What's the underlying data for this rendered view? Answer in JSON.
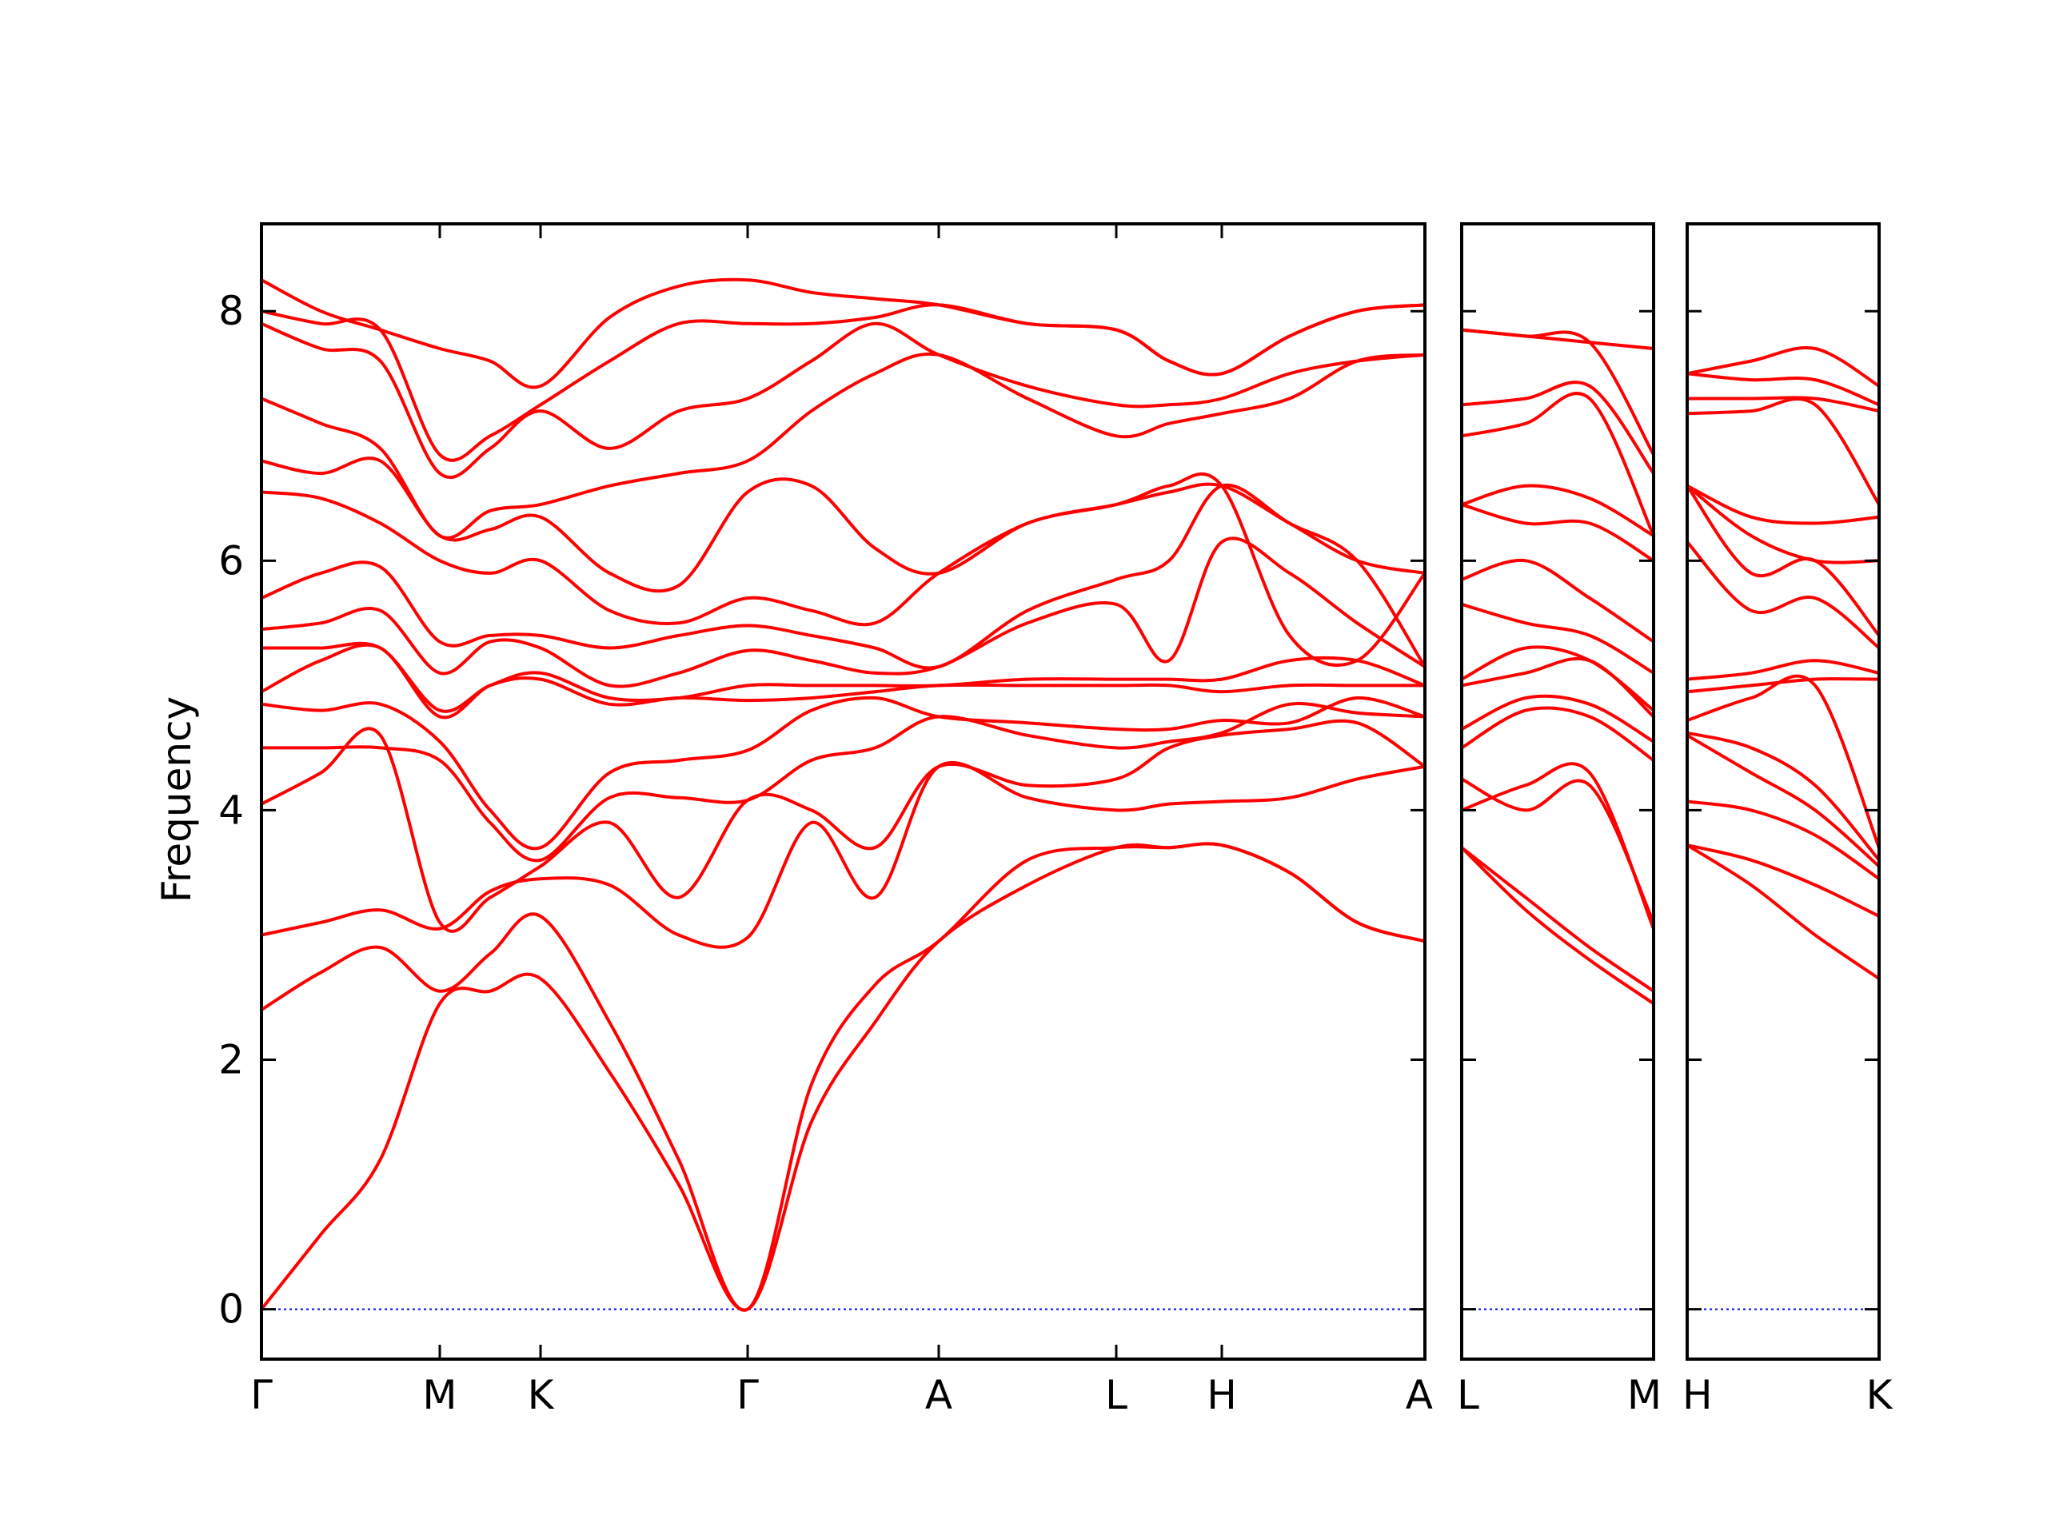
{
  "chart_data": {
    "type": "line",
    "ylabel": "Frequency",
    "ylim": [
      -0.4,
      8.7
    ],
    "yticks": [
      0,
      2,
      4,
      6,
      8
    ],
    "grid": false,
    "line_color": "#ff0000",
    "zero_line_color": "#0000ff",
    "panels": [
      {
        "labels": [
          "Γ",
          "M",
          "K",
          "Γ",
          "A",
          "L",
          "H",
          "A"
        ],
        "segments": [
          {
            "from": "Γ",
            "to": "M",
            "bands": [
              [
                0,
                2.4,
                3.0,
                4.05,
                4.5,
                4.85,
                4.95,
                5.3,
                5.45,
                5.7,
                6.55,
                6.8,
                7.3,
                7.9,
                8.0,
                8.25
              ],
              [
                0.6,
                2.7,
                3.1,
                4.3,
                4.5,
                4.8,
                5.2,
                5.3,
                5.5,
                5.9,
                6.5,
                6.7,
                7.1,
                7.7,
                7.9,
                8.0
              ],
              [
                1.2,
                2.9,
                3.2,
                4.6,
                4.5,
                4.85,
                5.3,
                5.3,
                5.6,
                5.95,
                6.3,
                6.8,
                6.9,
                7.6,
                7.85,
                7.85
              ],
              [
                2.45,
                2.55,
                3.05,
                3.1,
                4.4,
                4.55,
                4.75,
                4.8,
                5.1,
                5.35,
                6.0,
                6.2,
                6.2,
                6.7,
                6.85,
                7.7
              ]
            ]
          },
          {
            "from": "M",
            "to": "K",
            "bands": [
              [
                2.45,
                2.55,
                3.05,
                3.1,
                4.4,
                4.55,
                4.75,
                4.8,
                5.1,
                5.35,
                6.0,
                6.2,
                6.2,
                6.7,
                6.85,
                7.7
              ],
              [
                2.55,
                2.85,
                3.35,
                3.3,
                3.9,
                4.0,
                5.0,
                5.0,
                5.35,
                5.4,
                5.9,
                6.25,
                6.4,
                6.9,
                7.0,
                7.6
              ],
              [
                2.65,
                3.15,
                3.45,
                3.55,
                3.6,
                3.7,
                5.05,
                5.1,
                5.3,
                5.4,
                6.0,
                6.35,
                6.45,
                7.2,
                7.25,
                7.4
              ]
            ]
          },
          {
            "from": "K",
            "to": "Γ",
            "bands": [
              [
                2.65,
                3.15,
                3.45,
                3.55,
                3.6,
                3.7,
                5.05,
                5.1,
                5.3,
                5.4,
                6.0,
                6.35,
                6.45,
                7.2,
                7.25,
                7.4
              ],
              [
                1.9,
                2.3,
                3.4,
                3.9,
                4.1,
                4.3,
                4.85,
                4.9,
                5.0,
                5.3,
                5.6,
                5.9,
                6.6,
                6.9,
                7.6,
                7.95
              ],
              [
                1.0,
                1.2,
                3.0,
                3.3,
                4.1,
                4.4,
                4.9,
                4.9,
                5.1,
                5.4,
                5.5,
                5.8,
                6.7,
                7.2,
                7.9,
                8.2
              ],
              [
                0,
                0,
                2.98,
                4.08,
                4.08,
                4.48,
                4.88,
                5.0,
                5.28,
                5.48,
                5.7,
                6.55,
                6.8,
                7.3,
                7.9,
                8.25
              ]
            ]
          },
          {
            "from": "Γ",
            "to": "A",
            "bands": [
              [
                0,
                0,
                2.98,
                4.08,
                4.08,
                4.48,
                4.88,
                5.0,
                5.28,
                5.48,
                5.7,
                6.55,
                6.8,
                7.3,
                7.9,
                8.25
              ],
              [
                1.5,
                1.8,
                3.9,
                4.0,
                4.4,
                4.8,
                4.9,
                5.0,
                5.2,
                5.4,
                5.6,
                6.6,
                7.2,
                7.6,
                7.9,
                8.15
              ],
              [
                2.3,
                2.6,
                3.3,
                3.7,
                4.5,
                4.9,
                4.95,
                5.0,
                5.1,
                5.3,
                5.5,
                6.1,
                7.5,
                7.9,
                7.95,
                8.1
              ],
              [
                2.95,
                2.95,
                4.35,
                4.35,
                4.75,
                4.75,
                5.0,
                5.0,
                5.15,
                5.15,
                5.9,
                5.9,
                7.65,
                7.65,
                8.05,
                8.05
              ]
            ]
          },
          {
            "from": "A",
            "to": "L",
            "bands": [
              [
                2.95,
                2.95,
                4.35,
                4.35,
                4.75,
                4.75,
                5.0,
                5.0,
                5.15,
                5.15,
                5.9,
                5.9,
                7.65,
                7.65,
                8.05,
                8.05
              ],
              [
                3.4,
                3.6,
                4.1,
                4.2,
                4.6,
                4.7,
                5.0,
                5.05,
                5.5,
                5.6,
                6.3,
                6.3,
                7.3,
                7.4,
                7.9,
                7.9
              ],
              [
                3.7,
                3.7,
                4.0,
                4.25,
                4.5,
                4.65,
                5.0,
                5.05,
                5.65,
                5.85,
                6.45,
                6.45,
                7.0,
                7.25,
                7.85,
                7.85
              ]
            ]
          },
          {
            "from": "L",
            "to": "H",
            "bands": [
              [
                3.7,
                3.7,
                4.0,
                4.25,
                4.5,
                4.65,
                5.0,
                5.05,
                5.65,
                5.85,
                6.45,
                6.45,
                7.0,
                7.25,
                7.85,
                7.85
              ],
              [
                3.7,
                3.7,
                4.05,
                4.5,
                4.55,
                4.65,
                5.0,
                5.05,
                5.2,
                6.0,
                6.55,
                6.6,
                7.1,
                7.25,
                7.6,
                7.6
              ],
              [
                3.72,
                3.72,
                4.07,
                4.6,
                4.62,
                4.72,
                4.95,
                5.05,
                6.15,
                6.6,
                6.6,
                6.6,
                7.18,
                7.3,
                7.5,
                7.5
              ]
            ]
          },
          {
            "from": "H",
            "to": "A",
            "bands": [
              [
                3.72,
                3.72,
                4.07,
                4.6,
                4.62,
                4.72,
                4.95,
                5.05,
                6.15,
                6.6,
                6.6,
                6.6,
                7.18,
                7.3,
                7.5,
                7.5
              ],
              [
                3.5,
                3.5,
                4.1,
                4.65,
                4.85,
                4.7,
                5.0,
                5.2,
                5.9,
                6.3,
                6.3,
                5.4,
                7.3,
                7.5,
                7.8,
                7.8
              ],
              [
                3.1,
                3.1,
                4.25,
                4.7,
                4.78,
                4.9,
                5.0,
                5.2,
                5.5,
                6.0,
                6.0,
                5.2,
                7.6,
                7.6,
                8.0,
                8.0
              ],
              [
                2.95,
                2.95,
                4.35,
                4.35,
                4.75,
                4.75,
                5.0,
                5.0,
                5.15,
                5.15,
                5.9,
                5.9,
                7.65,
                7.65,
                8.05,
                8.05
              ]
            ]
          }
        ]
      },
      {
        "labels": [
          "L",
          "M"
        ],
        "segments": [
          {
            "from": "L",
            "to": "M",
            "bands": [
              [
                3.7,
                3.7,
                4.0,
                4.25,
                4.5,
                4.65,
                5.0,
                5.05,
                5.65,
                5.85,
                6.45,
                6.45,
                7.0,
                7.25,
                7.85,
                7.85
              ],
              [
                3.3,
                3.2,
                4.2,
                4.0,
                4.8,
                4.9,
                5.1,
                5.3,
                5.5,
                6.0,
                6.3,
                6.6,
                7.1,
                7.3,
                7.8,
                7.8
              ],
              [
                2.9,
                2.8,
                4.3,
                4.2,
                4.75,
                4.85,
                5.2,
                5.2,
                5.4,
                5.7,
                6.3,
                6.5,
                7.3,
                7.4,
                7.75,
                7.75
              ],
              [
                2.55,
                2.45,
                3.05,
                3.1,
                4.4,
                4.55,
                4.75,
                4.8,
                5.1,
                5.35,
                6.0,
                6.2,
                6.2,
                6.7,
                6.85,
                7.7
              ]
            ]
          }
        ]
      },
      {
        "labels": [
          "H",
          "K"
        ],
        "segments": [
          {
            "from": "H",
            "to": "K",
            "bands": [
              [
                3.72,
                3.72,
                4.07,
                4.6,
                4.62,
                4.72,
                4.95,
                5.05,
                6.15,
                6.6,
                6.6,
                6.6,
                7.18,
                7.3,
                7.5,
                7.5
              ],
              [
                3.4,
                3.6,
                4.0,
                4.3,
                4.5,
                4.9,
                5.0,
                5.1,
                5.6,
                5.9,
                6.2,
                6.35,
                7.2,
                7.3,
                7.45,
                7.6
              ],
              [
                3.0,
                3.4,
                3.8,
                4.0,
                4.2,
                5.0,
                5.05,
                5.2,
                5.7,
                6.0,
                6.0,
                6.3,
                7.25,
                7.3,
                7.45,
                7.7
              ],
              [
                2.65,
                3.15,
                3.45,
                3.55,
                3.6,
                3.7,
                5.05,
                5.1,
                5.3,
                5.4,
                6.0,
                6.35,
                6.45,
                7.2,
                7.25,
                7.4
              ]
            ]
          }
        ]
      }
    ]
  }
}
